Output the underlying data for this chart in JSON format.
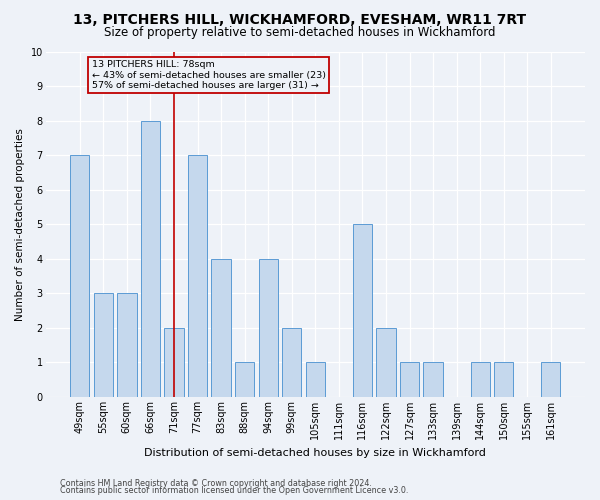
{
  "title": "13, PITCHERS HILL, WICKHAMFORD, EVESHAM, WR11 7RT",
  "subtitle": "Size of property relative to semi-detached houses in Wickhamford",
  "xlabel": "Distribution of semi-detached houses by size in Wickhamford",
  "ylabel": "Number of semi-detached properties",
  "footnote1": "Contains HM Land Registry data © Crown copyright and database right 2024.",
  "footnote2": "Contains public sector information licensed under the Open Government Licence v3.0.",
  "categories": [
    "49sqm",
    "55sqm",
    "60sqm",
    "66sqm",
    "71sqm",
    "77sqm",
    "83sqm",
    "88sqm",
    "94sqm",
    "99sqm",
    "105sqm",
    "111sqm",
    "116sqm",
    "122sqm",
    "127sqm",
    "133sqm",
    "139sqm",
    "144sqm",
    "150sqm",
    "155sqm",
    "161sqm"
  ],
  "values": [
    7,
    3,
    3,
    8,
    2,
    7,
    4,
    1,
    4,
    2,
    1,
    0,
    5,
    2,
    1,
    1,
    0,
    1,
    1,
    0,
    1
  ],
  "bar_color": "#c5d8ed",
  "bar_edge_color": "#5b9bd5",
  "highlight_bar_index": 4,
  "highlight_line_color": "#c00000",
  "annotation_text": "13 PITCHERS HILL: 78sqm\n← 43% of semi-detached houses are smaller (23)\n57% of semi-detached houses are larger (31) →",
  "annotation_box_color": "#c00000",
  "ylim": [
    0,
    10
  ],
  "yticks": [
    0,
    1,
    2,
    3,
    4,
    5,
    6,
    7,
    8,
    9,
    10
  ],
  "plot_bg_color": "#eef2f8",
  "fig_bg_color": "#eef2f8",
  "grid_color": "#ffffff",
  "title_fontsize": 10,
  "subtitle_fontsize": 8.5,
  "ylabel_fontsize": 7.5,
  "xlabel_fontsize": 8,
  "tick_fontsize": 7,
  "footnote_fontsize": 5.8
}
